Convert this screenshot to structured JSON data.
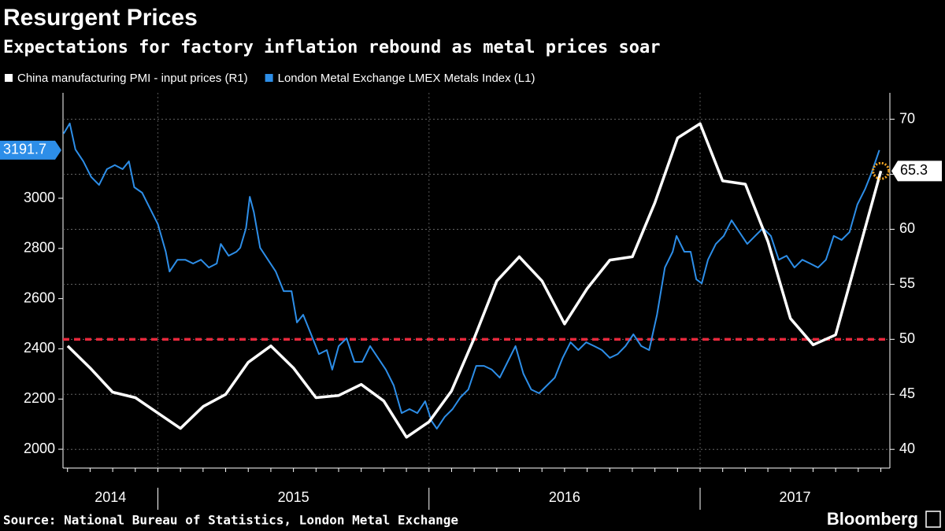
{
  "chart_data": {
    "type": "line",
    "title": "Resurgent Prices",
    "subtitle": "Expectations for factory inflation rebound as metal prices soar",
    "source": "Source: National Bureau of Statistics, London Metal Exchange",
    "brand": "Bloomberg",
    "xlim": [
      2014.65,
      2017.7
    ],
    "xticks": [
      2015,
      2016,
      2017
    ],
    "xtick_labels": [
      "2014",
      "2015",
      "2016",
      "2017"
    ],
    "ylim": [
      1925,
      3420
    ],
    "yticks": [
      2000,
      2200,
      2400,
      2600,
      2800,
      3000
    ],
    "y2lim": [
      38.3,
      72.4
    ],
    "y2ticks": [
      40,
      45,
      50,
      55,
      60,
      65,
      70
    ],
    "grid": true,
    "reference_line": {
      "value": 50,
      "axis": "y2",
      "color": "#e8283c"
    },
    "series": [
      {
        "name": "China manufacturing PMI - input prices (R1)",
        "color": "#ffffff",
        "axis": "y2",
        "x": [
          2014.667,
          2014.75,
          2014.833,
          2014.917,
          2015,
          2015.083,
          2015.167,
          2015.25,
          2015.333,
          2015.417,
          2015.5,
          2015.583,
          2015.667,
          2015.75,
          2015.833,
          2015.917,
          2016,
          2016.083,
          2016.167,
          2016.25,
          2016.333,
          2016.417,
          2016.5,
          2016.583,
          2016.667,
          2016.75,
          2016.833,
          2016.917,
          2017,
          2017.083,
          2017.167,
          2017.25,
          2017.333,
          2017.417,
          2017.5,
          2017.583,
          2017.667
        ],
        "values": [
          49.4,
          47.4,
          45.2,
          44.7,
          43.3,
          41.9,
          43.9,
          45.0,
          47.9,
          49.4,
          47.4,
          44.7,
          44.9,
          45.9,
          44.4,
          41.1,
          42.5,
          45.3,
          50.1,
          55.3,
          57.5,
          55.3,
          51.4,
          54.6,
          57.2,
          57.5,
          62.4,
          68.3,
          69.6,
          64.4,
          64.1,
          58.9,
          51.9,
          49.5,
          50.4,
          57.8,
          65.3
        ]
      },
      {
        "name": "London Metal Exchange LMEX Metals Index  (L1)",
        "color": "#2d8ee8",
        "axis": "y",
        "x": [
          2014.652,
          2014.675,
          2014.696,
          2014.725,
          2014.754,
          2014.783,
          2014.812,
          2014.841,
          2014.87,
          2014.893,
          2014.913,
          2014.942,
          2014.971,
          2015,
          2015.029,
          2015.043,
          2015.072,
          2015.101,
          2015.13,
          2015.159,
          2015.188,
          2015.217,
          2015.232,
          2015.261,
          2015.29,
          2015.304,
          2015.325,
          2015.339,
          2015.354,
          2015.377,
          2015.406,
          2015.435,
          2015.464,
          2015.493,
          2015.513,
          2015.536,
          2015.565,
          2015.594,
          2015.623,
          2015.643,
          2015.667,
          2015.696,
          2015.725,
          2015.754,
          2015.783,
          2015.812,
          2015.841,
          2015.87,
          2015.899,
          2015.928,
          2015.957,
          2015.986,
          2016.009,
          2016.029,
          2016.058,
          2016.087,
          2016.116,
          2016.145,
          2016.174,
          2016.203,
          2016.232,
          2016.261,
          2016.29,
          2016.319,
          2016.348,
          2016.377,
          2016.406,
          2016.435,
          2016.464,
          2016.493,
          2016.522,
          2016.551,
          2016.58,
          2016.609,
          2016.638,
          2016.667,
          2016.696,
          2016.725,
          2016.754,
          2016.783,
          2016.812,
          2016.841,
          2016.87,
          2016.899,
          2016.913,
          2016.942,
          2016.965,
          2016.986,
          2017.006,
          2017.029,
          2017.058,
          2017.087,
          2017.116,
          2017.145,
          2017.174,
          2017.203,
          2017.232,
          2017.261,
          2017.29,
          2017.319,
          2017.348,
          2017.377,
          2017.406,
          2017.435,
          2017.464,
          2017.493,
          2017.522,
          2017.551,
          2017.58,
          2017.609,
          2017.632,
          2017.652,
          2017.661
        ],
        "values": [
          3257,
          3298,
          3194,
          3147,
          3085,
          3053,
          3116,
          3132,
          3116,
          3147,
          3044,
          3022,
          2959,
          2897,
          2787,
          2708,
          2755,
          2755,
          2740,
          2755,
          2724,
          2740,
          2818,
          2771,
          2787,
          2803,
          2881,
          3006,
          2944,
          2803,
          2755,
          2708,
          2630,
          2630,
          2505,
          2536,
          2458,
          2379,
          2395,
          2317,
          2411,
          2442,
          2348,
          2348,
          2411,
          2364,
          2317,
          2254,
          2144,
          2160,
          2144,
          2191,
          2113,
          2082,
          2129,
          2160,
          2207,
          2238,
          2332,
          2332,
          2317,
          2285,
          2348,
          2411,
          2301,
          2238,
          2223,
          2254,
          2285,
          2364,
          2426,
          2395,
          2426,
          2411,
          2395,
          2364,
          2379,
          2411,
          2458,
          2411,
          2395,
          2536,
          2724,
          2787,
          2850,
          2787,
          2787,
          2677,
          2661,
          2755,
          2818,
          2850,
          2912,
          2865,
          2818,
          2850,
          2881,
          2850,
          2755,
          2771,
          2724,
          2755,
          2740,
          2724,
          2755,
          2850,
          2834,
          2865,
          2975,
          3038,
          3100,
          3163,
          3191.7
        ]
      }
    ]
  }
}
